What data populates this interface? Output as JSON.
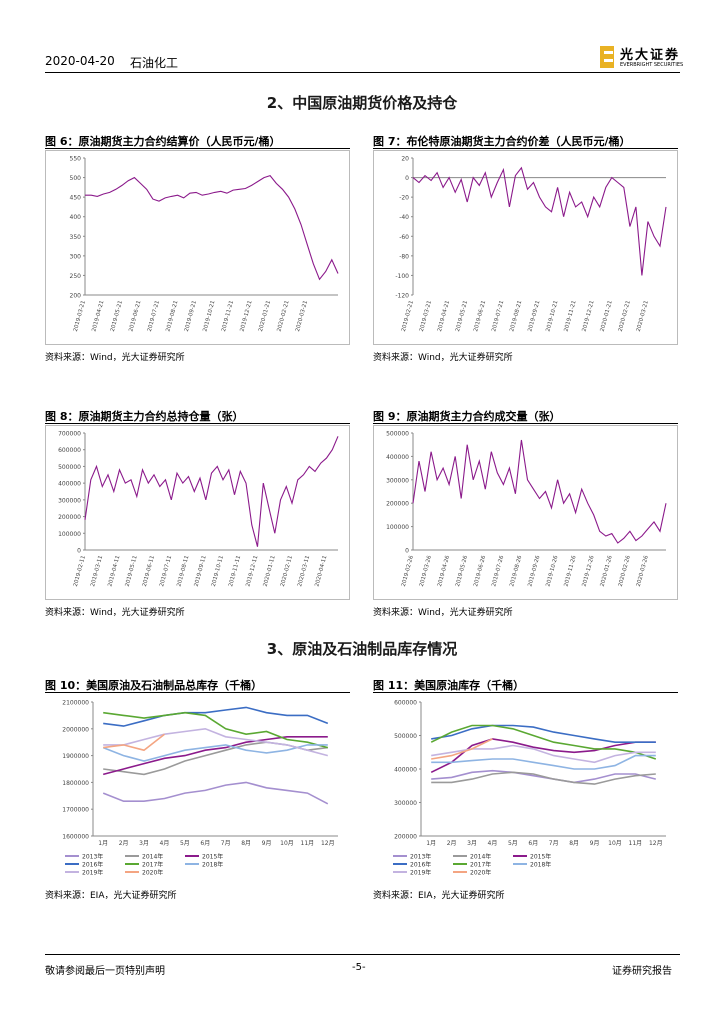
{
  "header": {
    "date": "2020-04-20",
    "industry": "石油化工",
    "logo": "光大证券",
    "logo_en": "EVERBRIGHT SECURITIES"
  },
  "sections": [
    "2、中国原油期货价格及持仓",
    "3、原油及石油制品库存情况"
  ],
  "figures": [
    {
      "title": "图 6：原油期货主力合约结算价（人民币元/桶）",
      "source": "资料来源：Wind，光大证券研究所",
      "chart_data": {
        "type": "line",
        "categories": [
          "2019-03-21",
          null,
          null,
          "2019-04-21",
          null,
          null,
          "2019-05-21",
          null,
          null,
          "2019-06-21",
          null,
          null,
          "2019-07-21",
          null,
          null,
          "2019-08-21",
          null,
          null,
          "2019-09-21",
          null,
          null,
          "2019-10-21",
          null,
          null,
          "2019-11-21",
          null,
          null,
          "2019-12-21",
          null,
          null,
          "2020-01-21",
          null,
          null,
          "2020-02-21",
          null,
          null,
          "2020-03-21",
          null,
          null,
          null,
          null,
          null
        ],
        "series": [
          {
            "color": "#8b1a8b",
            "values": [
              455,
              455,
              452,
              458,
              462,
              470,
              480,
              492,
              500,
              485,
              470,
              445,
              440,
              448,
              452,
              455,
              448,
              460,
              462,
              455,
              458,
              462,
              465,
              460,
              468,
              470,
              472,
              480,
              490,
              500,
              505,
              485,
              470,
              450,
              420,
              380,
              330,
              280,
              240,
              260,
              290,
              255
            ]
          }
        ],
        "ylim": [
          200,
          550
        ],
        "yticks": [
          200,
          250,
          300,
          350,
          400,
          450,
          500,
          550
        ]
      }
    },
    {
      "title": "图 7：布伦特原油期货主力合约价差（人民币元/桶）",
      "source": "资料来源：Wind，光大证券研究所",
      "chart_data": {
        "type": "line",
        "categories": [
          "2019-02-21",
          null,
          null,
          "2019-03-21",
          null,
          null,
          "2019-04-21",
          null,
          null,
          "2019-05-21",
          null,
          null,
          "2019-06-21",
          null,
          null,
          "2019-07-21",
          null,
          null,
          "2019-08-21",
          null,
          null,
          "2019-09-21",
          null,
          null,
          "2019-10-21",
          null,
          null,
          "2019-11-21",
          null,
          null,
          "2019-12-21",
          null,
          null,
          "2020-01-21",
          null,
          null,
          "2020-02-21",
          null,
          null,
          "2020-03-21",
          null,
          null,
          null
        ],
        "series": [
          {
            "color": "#8b1a8b",
            "values": [
              0,
              -5,
              2,
              -3,
              5,
              -10,
              0,
              -15,
              -2,
              -25,
              0,
              -8,
              5,
              -20,
              -5,
              8,
              -30,
              2,
              10,
              -12,
              -5,
              -20,
              -30,
              -35,
              -10,
              -40,
              -15,
              -30,
              -25,
              -40,
              -20,
              -30,
              -10,
              0,
              -5,
              -10,
              -50,
              -30,
              -100,
              -45,
              -60,
              -70,
              -30
            ]
          }
        ],
        "ylim": [
          -120,
          20
        ],
        "yticks": [
          20,
          0,
          -20,
          -40,
          -60,
          -80,
          -100,
          -120
        ],
        "zero_line": true
      }
    },
    {
      "title": "图 8：原油期货主力合约总持仓量（张）",
      "source": "资料来源：Wind，光大证券研究所",
      "chart_data": {
        "type": "line",
        "categories": [
          "2019-02-11",
          null,
          null,
          "2019-03-11",
          null,
          null,
          "2019-04-11",
          null,
          null,
          "2019-05-11",
          null,
          null,
          "2019-06-11",
          null,
          null,
          "2019-07-11",
          null,
          null,
          "2019-08-11",
          null,
          null,
          "2019-09-11",
          null,
          null,
          "2019-10-11",
          null,
          null,
          "2019-11-11",
          null,
          null,
          "2019-12-11",
          null,
          null,
          "2020-01-11",
          null,
          null,
          "2020-02-11",
          null,
          null,
          "2020-03-11",
          null,
          null,
          "2020-04-11",
          null,
          null
        ],
        "series": [
          {
            "color": "#8b1a8b",
            "values": [
              180000,
              420000,
              500000,
              380000,
              450000,
              350000,
              480000,
              400000,
              420000,
              320000,
              480000,
              400000,
              450000,
              380000,
              420000,
              300000,
              460000,
              400000,
              440000,
              350000,
              430000,
              300000,
              460000,
              500000,
              420000,
              480000,
              330000,
              470000,
              400000,
              150000,
              20000,
              400000,
              250000,
              100000,
              300000,
              380000,
              280000,
              420000,
              450000,
              500000,
              470000,
              520000,
              550000,
              600000,
              680000
            ]
          }
        ],
        "ylim": [
          0,
          700000
        ],
        "yticks": [
          0,
          100000,
          200000,
          300000,
          400000,
          500000,
          600000,
          700000
        ]
      }
    },
    {
      "title": "图 9：原油期货主力合约成交量（张）",
      "source": "资料来源：Wind，光大证券研究所",
      "chart_data": {
        "type": "line",
        "categories": [
          "2019-02-26",
          null,
          null,
          "2019-03-26",
          null,
          null,
          "2019-04-26",
          null,
          null,
          "2019-05-26",
          null,
          null,
          "2019-06-26",
          null,
          null,
          "2019-07-26",
          null,
          null,
          "2019-08-26",
          null,
          null,
          "2019-09-26",
          null,
          null,
          "2019-10-26",
          null,
          null,
          "2019-11-26",
          null,
          null,
          "2019-12-26",
          null,
          null,
          "2020-01-26",
          null,
          null,
          "2020-02-26",
          null,
          null,
          "2020-03-26",
          null,
          null,
          null
        ],
        "series": [
          {
            "color": "#8b1a8b",
            "values": [
              200000,
              380000,
              250000,
              420000,
              300000,
              350000,
              280000,
              400000,
              220000,
              450000,
              300000,
              380000,
              260000,
              420000,
              330000,
              280000,
              350000,
              240000,
              470000,
              300000,
              260000,
              220000,
              250000,
              180000,
              300000,
              200000,
              240000,
              160000,
              260000,
              200000,
              150000,
              80000,
              60000,
              70000,
              30000,
              50000,
              80000,
              40000,
              60000,
              90000,
              120000,
              80000,
              200000
            ]
          }
        ],
        "ylim": [
          0,
          500000
        ],
        "yticks": [
          0,
          100000,
          200000,
          300000,
          400000,
          500000
        ]
      }
    },
    {
      "title": "图 10：美国原油及石油制品总库存（千桶）",
      "source": "资料来源：EIA，光大证券研究所",
      "chart_data": {
        "type": "line",
        "legend": "bottom",
        "categories": [
          "1月",
          "2月",
          "3月",
          "4月",
          "5月",
          "6月",
          "7月",
          "8月",
          "9月",
          "10月",
          "11月",
          "12月"
        ],
        "series": [
          {
            "name": "2013年",
            "color": "#a48fcf",
            "values": [
              1760000,
              1730000,
              1730000,
              1740000,
              1760000,
              1770000,
              1790000,
              1800000,
              1780000,
              1770000,
              1760000,
              1720000
            ]
          },
          {
            "name": "2014年",
            "color": "#9a9a9a",
            "values": [
              1850000,
              1840000,
              1830000,
              1850000,
              1880000,
              1900000,
              1920000,
              1940000,
              1950000,
              1940000,
              1920000,
              1930000
            ]
          },
          {
            "name": "2015年",
            "color": "#8b1a8b",
            "values": [
              1830000,
              1850000,
              1870000,
              1890000,
              1900000,
              1920000,
              1930000,
              1950000,
              1960000,
              1970000,
              1970000,
              1970000
            ]
          },
          {
            "name": "2016年",
            "color": "#3b6dc4",
            "values": [
              2020000,
              2010000,
              2030000,
              2050000,
              2060000,
              2060000,
              2070000,
              2080000,
              2060000,
              2050000,
              2050000,
              2020000
            ]
          },
          {
            "name": "2017年",
            "color": "#5aa832",
            "values": [
              2060000,
              2050000,
              2040000,
              2050000,
              2060000,
              2050000,
              2000000,
              1980000,
              1990000,
              1960000,
              1950000,
              1930000
            ]
          },
          {
            "name": "2018年",
            "color": "#8eb4e3",
            "values": [
              1930000,
              1900000,
              1880000,
              1900000,
              1920000,
              1930000,
              1940000,
              1920000,
              1910000,
              1920000,
              1940000,
              1940000
            ]
          },
          {
            "name": "2019年",
            "color": "#c3b3e0",
            "values": [
              1940000,
              1940000,
              1960000,
              1980000,
              1990000,
              2000000,
              1970000,
              1960000,
              1950000,
              1940000,
              1920000,
              1900000
            ]
          },
          {
            "name": "2020年",
            "color": "#f4a582",
            "values": [
              1930000,
              1940000,
              1920000,
              1980000,
              null,
              null,
              null,
              null,
              null,
              null,
              null,
              null
            ]
          }
        ],
        "ylim": [
          1600000,
          2100000
        ],
        "yticks": [
          1600000,
          1700000,
          1800000,
          1900000,
          2000000,
          2100000
        ]
      }
    },
    {
      "title": "图 11：美国原油库存（千桶）",
      "source": "资料来源：EIA，光大证券研究所",
      "chart_data": {
        "type": "line",
        "legend": "bottom",
        "categories": [
          "1月",
          "2月",
          "3月",
          "4月",
          "5月",
          "6月",
          "7月",
          "8月",
          "9月",
          "10月",
          "11月",
          "12月"
        ],
        "series": [
          {
            "name": "2013年",
            "color": "#a48fcf",
            "values": [
              370000,
              375000,
              390000,
              395000,
              390000,
              380000,
              370000,
              360000,
              370000,
              385000,
              385000,
              370000
            ]
          },
          {
            "name": "2014年",
            "color": "#9a9a9a",
            "values": [
              360000,
              360000,
              370000,
              385000,
              390000,
              385000,
              370000,
              360000,
              355000,
              370000,
              380000,
              385000
            ]
          },
          {
            "name": "2015年",
            "color": "#8b1a8b",
            "values": [
              390000,
              420000,
              470000,
              490000,
              480000,
              465000,
              455000,
              450000,
              455000,
              470000,
              480000,
              480000
            ]
          },
          {
            "name": "2016年",
            "color": "#3b6dc4",
            "values": [
              490000,
              500000,
              520000,
              530000,
              530000,
              525000,
              510000,
              500000,
              490000,
              480000,
              480000,
              480000
            ]
          },
          {
            "name": "2017年",
            "color": "#5aa832",
            "values": [
              480000,
              510000,
              530000,
              530000,
              520000,
              500000,
              480000,
              470000,
              460000,
              460000,
              450000,
              430000
            ]
          },
          {
            "name": "2018年",
            "color": "#8eb4e3",
            "values": [
              420000,
              420000,
              425000,
              430000,
              430000,
              420000,
              410000,
              400000,
              400000,
              410000,
              440000,
              440000
            ]
          },
          {
            "name": "2019年",
            "color": "#c3b3e0",
            "values": [
              440000,
              450000,
              460000,
              460000,
              470000,
              460000,
              440000,
              430000,
              420000,
              440000,
              450000,
              450000
            ]
          },
          {
            "name": "2020年",
            "color": "#f4a582",
            "values": [
              430000,
              440000,
              460000,
              490000,
              null,
              null,
              null,
              null,
              null,
              null,
              null,
              null
            ]
          }
        ],
        "ylim": [
          200000,
          600000
        ],
        "yticks": [
          200000,
          300000,
          400000,
          500000,
          600000
        ]
      }
    }
  ],
  "footer": {
    "left": "敬请参阅最后一页特别声明",
    "center": "-5-",
    "right": "证券研究报告"
  }
}
